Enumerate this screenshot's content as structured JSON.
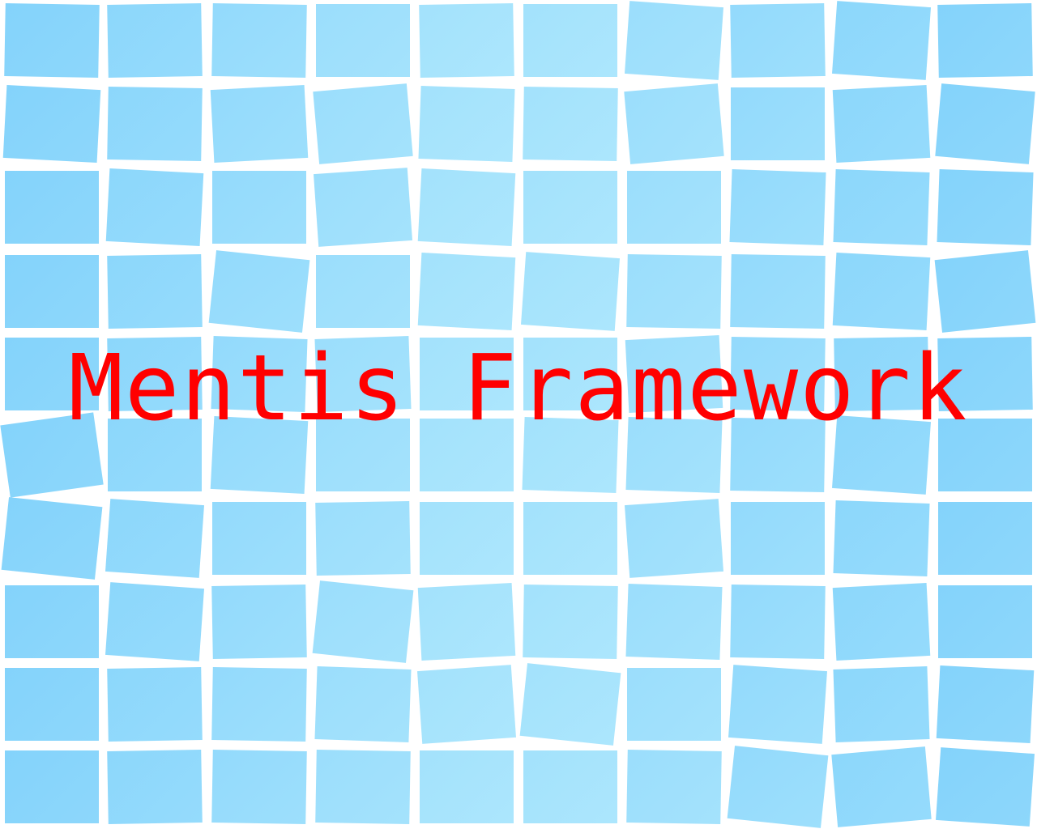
{
  "splash": {
    "title": "Mentis Framework"
  },
  "colors": {
    "background": "#ffffff",
    "title_text": "#ff0000",
    "tile_light": "#b2e9fd",
    "tile_mid": "#9fdffb",
    "tile_dark": "#84d3fb"
  }
}
